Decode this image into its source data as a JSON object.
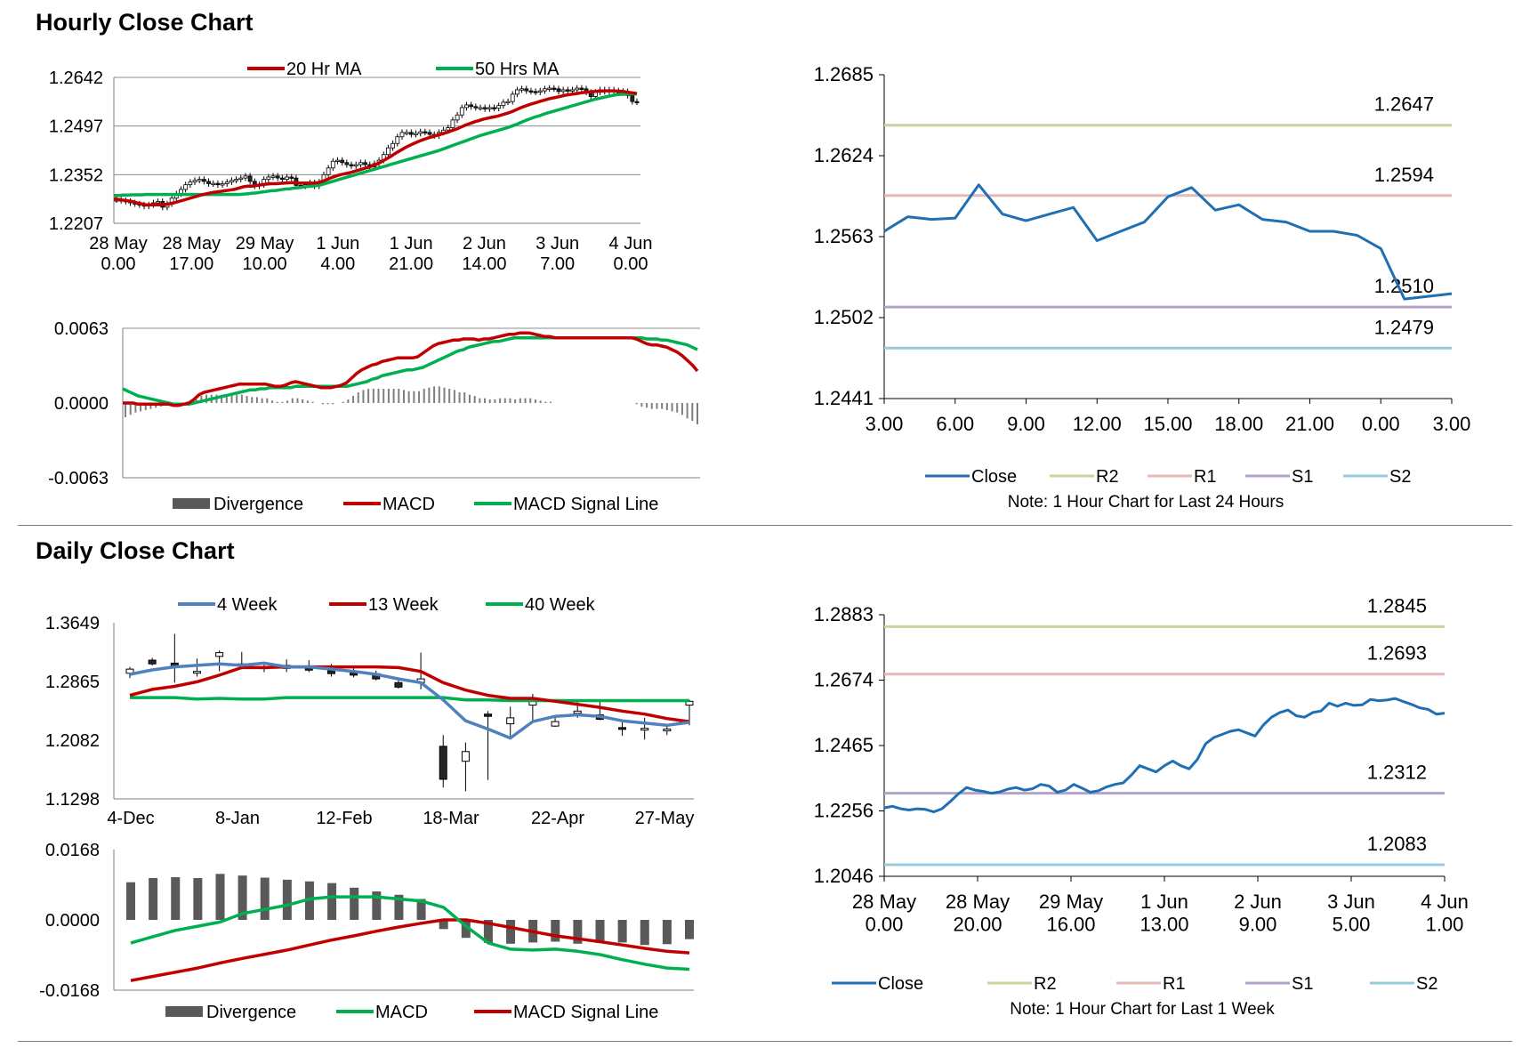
{
  "sections": {
    "hourly_title": "Hourly Close Chart",
    "daily_title": "Daily Close Chart"
  },
  "colors": {
    "ma20": "#c00000",
    "ma50": "#00b050",
    "close_blue": "#1f6fb2",
    "ma4w": "#4f81bd",
    "r2": "#c3d69b",
    "r1": "#e6b9b8",
    "s1": "#b3a2c7",
    "s2": "#93cddd",
    "divergence": "#595959",
    "candle_up_fill": "#ffffff",
    "candle_down_fill": "#262626"
  },
  "chart_data": [
    {
      "id": "hourly_price",
      "type": "candlestick",
      "legend": [
        "20 Hr MA",
        "50 Hrs MA"
      ],
      "ylim": [
        1.2207,
        1.2642
      ],
      "yticks": [
        "1.2642",
        "1.2497",
        "1.2352",
        "1.2207"
      ],
      "xticks": [
        "28 May\n0.00",
        "28 May\n17.00",
        "29 May\n10.00",
        "1 Jun\n4.00",
        "1 Jun\n21.00",
        "2 Jun\n14.00",
        "3 Jun\n7.00",
        "4 Jun\n0.00"
      ],
      "close": [
        1.2277,
        1.2275,
        1.2272,
        1.2268,
        1.2265,
        1.2262,
        1.2258,
        1.2262,
        1.2268,
        1.2272,
        1.2255,
        1.2265,
        1.2282,
        1.2295,
        1.2308,
        1.2322,
        1.233,
        1.2335,
        1.2338,
        1.2332,
        1.2325,
        1.2326,
        1.2322,
        1.2325,
        1.233,
        1.2335,
        1.2338,
        1.2342,
        1.2348,
        1.2332,
        1.2318,
        1.2322,
        1.2338,
        1.2345,
        1.2348,
        1.2342,
        1.2338,
        1.2345,
        1.2342,
        1.232,
        1.2318,
        1.2322,
        1.2328,
        1.2318,
        1.233,
        1.2352,
        1.2372,
        1.2392,
        1.2395,
        1.2388,
        1.2382,
        1.2378,
        1.2382,
        1.2388,
        1.2382,
        1.2375,
        1.2385,
        1.2395,
        1.2412,
        1.2432,
        1.2445,
        1.2465,
        1.2478,
        1.2478,
        1.2472,
        1.2475,
        1.248,
        1.2478,
        1.2472,
        1.2468,
        1.2478,
        1.2485,
        1.2492,
        1.2515,
        1.253,
        1.2552,
        1.256,
        1.2555,
        1.2552,
        1.2552,
        1.2548,
        1.2552,
        1.255,
        1.2558,
        1.2568,
        1.257,
        1.2592,
        1.2605,
        1.2608,
        1.2602,
        1.26,
        1.2598,
        1.2602,
        1.2608,
        1.261,
        1.2608,
        1.26,
        1.2605,
        1.2602,
        1.2605,
        1.261,
        1.2608,
        1.2598,
        1.2585,
        1.2598,
        1.2605,
        1.26,
        1.2605,
        1.2602,
        1.2596,
        1.26,
        1.2588,
        1.257,
        1.2568
      ],
      "ma20": [
        1.228,
        1.2278,
        1.2276,
        1.2274,
        1.2272,
        1.2268,
        1.2265,
        1.2262,
        1.2262,
        1.2262,
        1.2262,
        1.2263,
        1.2265,
        1.2268,
        1.2272,
        1.2276,
        1.228,
        1.2284,
        1.2288,
        1.2292,
        1.2295,
        1.2298,
        1.23,
        1.2302,
        1.2304,
        1.2306,
        1.2308,
        1.2312,
        1.2316,
        1.2318,
        1.2318,
        1.232,
        1.2322,
        1.2324,
        1.2325,
        1.2325,
        1.2326,
        1.2327,
        1.2328,
        1.2328,
        1.2327,
        1.2327,
        1.2327,
        1.2327,
        1.2328,
        1.2332,
        1.2337,
        1.2343,
        1.2348,
        1.2352,
        1.2355,
        1.2358,
        1.2362,
        1.2366,
        1.237,
        1.2374,
        1.2379,
        1.2385,
        1.2392,
        1.24,
        1.2408,
        1.2417,
        1.2425,
        1.2433,
        1.244,
        1.2446,
        1.2452,
        1.2457,
        1.2462,
        1.2466,
        1.247,
        1.2474,
        1.2478,
        1.2483,
        1.2488,
        1.2494,
        1.25,
        1.2505,
        1.251,
        1.2514,
        1.2518,
        1.2521,
        1.2524,
        1.2527,
        1.2531,
        1.2535,
        1.254,
        1.2546,
        1.2552,
        1.2557,
        1.2562,
        1.2566,
        1.257,
        1.2574,
        1.2578,
        1.2581,
        1.2584,
        1.2587,
        1.259,
        1.2592,
        1.2594,
        1.2596,
        1.2598,
        1.2599,
        1.26,
        1.2601,
        1.2602,
        1.2602,
        1.2602,
        1.2601,
        1.26,
        1.2598,
        1.2596,
        1.2594
      ],
      "ma50": [
        1.229,
        1.229,
        1.2291,
        1.2291,
        1.2292,
        1.2292,
        1.2292,
        1.2293,
        1.2293,
        1.2293,
        1.2293,
        1.2293,
        1.2293,
        1.2293,
        1.2293,
        1.2293,
        1.2293,
        1.2293,
        1.2293,
        1.2293,
        1.2293,
        1.2293,
        1.2293,
        1.2293,
        1.2293,
        1.2293,
        1.2293,
        1.2293,
        1.2294,
        1.2295,
        1.2297,
        1.2298,
        1.23,
        1.2302,
        1.2304,
        1.2305,
        1.2307,
        1.2309,
        1.231,
        1.2312,
        1.2313,
        1.2315,
        1.2317,
        1.2318,
        1.232,
        1.2323,
        1.2327,
        1.2331,
        1.2335,
        1.2339,
        1.2343,
        1.2347,
        1.2351,
        1.2355,
        1.2359,
        1.2363,
        1.2367,
        1.2371,
        1.2375,
        1.2379,
        1.2383,
        1.2387,
        1.2391,
        1.2395,
        1.2399,
        1.2403,
        1.2407,
        1.2411,
        1.2415,
        1.2419,
        1.2423,
        1.2428,
        1.2433,
        1.2438,
        1.2443,
        1.2448,
        1.2453,
        1.2458,
        1.2463,
        1.2468,
        1.2472,
        1.2476,
        1.248,
        1.2484,
        1.2488,
        1.2492,
        1.2497,
        1.2502,
        1.2508,
        1.2514,
        1.2519,
        1.2524,
        1.2528,
        1.2533,
        1.2537,
        1.2541,
        1.2545,
        1.2549,
        1.2553,
        1.2557,
        1.2561,
        1.2565,
        1.2569,
        1.2573,
        1.2577,
        1.258,
        1.2583,
        1.2586,
        1.2589,
        1.2591,
        1.2592,
        1.2593,
        1.2593,
        1.2593
      ]
    },
    {
      "id": "hourly_macd",
      "type": "bar+line",
      "legend": [
        "Divergence",
        "MACD",
        "MACD Signal Line"
      ],
      "ylim": [
        -0.0063,
        0.0063
      ],
      "yticks": [
        "0.0063",
        "0.0000",
        "-0.0063"
      ],
      "macd": [
        0.0,
        0.0,
        0.0,
        -0.0001,
        -0.0001,
        -0.0001,
        -0.0001,
        -0.0001,
        -0.0001,
        -0.0001,
        -0.0002,
        -0.0002,
        -0.0001,
        0.0,
        0.0003,
        0.0007,
        0.0009,
        0.001,
        0.0011,
        0.0012,
        0.0013,
        0.0014,
        0.0015,
        0.0016,
        0.0016,
        0.0016,
        0.0016,
        0.0016,
        0.0016,
        0.0015,
        0.0014,
        0.0014,
        0.0015,
        0.0017,
        0.0018,
        0.0017,
        0.0016,
        0.0015,
        0.0014,
        0.0013,
        0.0013,
        0.0013,
        0.0014,
        0.0015,
        0.0017,
        0.0021,
        0.0025,
        0.0028,
        0.003,
        0.0032,
        0.0033,
        0.0035,
        0.0036,
        0.0037,
        0.0038,
        0.0038,
        0.0038,
        0.0038,
        0.0039,
        0.0042,
        0.0045,
        0.0048,
        0.005,
        0.0051,
        0.0052,
        0.0053,
        0.0053,
        0.0054,
        0.0054,
        0.0054,
        0.0053,
        0.0054,
        0.0054,
        0.0055,
        0.0056,
        0.0057,
        0.0058,
        0.0058,
        0.0059,
        0.0059,
        0.0059,
        0.0058,
        0.0057,
        0.0056,
        0.0056,
        0.0055,
        0.0055,
        0.0055,
        0.0055,
        0.0055,
        0.0055,
        0.0055,
        0.0055,
        0.0055,
        0.0055,
        0.0055,
        0.0055,
        0.0055,
        0.0055,
        0.0055,
        0.0055,
        0.0054,
        0.0052,
        0.005,
        0.0049,
        0.0049,
        0.0048,
        0.0047,
        0.0045,
        0.0043,
        0.004,
        0.0036,
        0.0032,
        0.0027
      ],
      "signal": [
        0.0012,
        0.001,
        0.0008,
        0.0006,
        0.0005,
        0.0004,
        0.0003,
        0.0002,
        0.0001,
        0.0,
        -0.0001,
        -0.0001,
        -0.0001,
        -0.0001,
        0.0,
        0.0001,
        0.0002,
        0.0003,
        0.0004,
        0.0005,
        0.0006,
        0.0007,
        0.0008,
        0.0009,
        0.001,
        0.0011,
        0.0011,
        0.0012,
        0.0012,
        0.0013,
        0.0013,
        0.0013,
        0.0013,
        0.0013,
        0.0014,
        0.0014,
        0.0014,
        0.0014,
        0.0014,
        0.0014,
        0.0014,
        0.0014,
        0.0014,
        0.0014,
        0.0014,
        0.0015,
        0.0016,
        0.0017,
        0.0018,
        0.002,
        0.0021,
        0.0023,
        0.0024,
        0.0025,
        0.0026,
        0.0027,
        0.0028,
        0.0028,
        0.0029,
        0.003,
        0.0032,
        0.0034,
        0.0036,
        0.0038,
        0.004,
        0.0042,
        0.0044,
        0.0045,
        0.0047,
        0.0048,
        0.0049,
        0.005,
        0.0051,
        0.0052,
        0.0052,
        0.0053,
        0.0054,
        0.0055,
        0.0055,
        0.0055,
        0.0055,
        0.0055,
        0.0055,
        0.0055,
        0.0055,
        0.0055,
        0.0055,
        0.0055,
        0.0055,
        0.0055,
        0.0055,
        0.0055,
        0.0055,
        0.0055,
        0.0055,
        0.0055,
        0.0055,
        0.0055,
        0.0055,
        0.0055,
        0.0055,
        0.0055,
        0.0055,
        0.0054,
        0.0054,
        0.0054,
        0.0053,
        0.0053,
        0.0052,
        0.0051,
        0.005,
        0.0049,
        0.0047,
        0.0045
      ]
    },
    {
      "id": "hourly_levels",
      "type": "line",
      "legend": [
        "Close",
        "R2",
        "R1",
        "S1",
        "S2"
      ],
      "note": "Note: 1 Hour Chart for Last 24 Hours",
      "ylim": [
        1.2441,
        1.2685
      ],
      "yticks": [
        "1.2685",
        "1.2624",
        "1.2563",
        "1.2502",
        "1.2441"
      ],
      "xticks": [
        "3.00",
        "6.00",
        "9.00",
        "12.00",
        "15.00",
        "18.00",
        "21.00",
        "0.00",
        "3.00"
      ],
      "close": [
        1.2567,
        1.2578,
        1.2576,
        1.2577,
        1.2602,
        1.258,
        1.2575,
        1.258,
        1.2585,
        1.256,
        1.2567,
        1.2574,
        1.2593,
        1.26,
        1.2583,
        1.2587,
        1.2576,
        1.2574,
        1.2567,
        1.2567,
        1.2564,
        1.2554,
        1.2516,
        1.2518,
        1.252
      ],
      "levels": {
        "R2": "1.2647",
        "R1": "1.2594",
        "S1": "1.2510",
        "S2": "1.2479"
      }
    },
    {
      "id": "daily_price",
      "type": "candlestick",
      "legend": [
        "4 Week",
        "13 Week",
        "40 Week"
      ],
      "ylim": [
        1.1298,
        1.3649
      ],
      "yticks": [
        "1.3649",
        "1.2865",
        "1.2082",
        "1.1298"
      ],
      "xticks": [
        "4-Dec",
        "8-Jan",
        "12-Feb",
        "18-Mar",
        "22-Apr",
        "27-May"
      ],
      "candles": [
        [
          1.2975,
          1.303,
          1.291,
          1.306
        ],
        [
          1.315,
          1.31,
          1.308,
          1.318
        ],
        [
          1.311,
          1.307,
          1.285,
          1.35
        ],
        [
          1.299,
          1.3,
          1.293,
          1.317
        ],
        [
          1.32,
          1.325,
          1.3,
          1.328
        ],
        [
          1.31,
          1.308,
          1.303,
          1.326
        ],
        [
          1.305,
          1.306,
          1.299,
          1.31
        ],
        [
          1.304,
          1.308,
          1.299,
          1.316
        ],
        [
          1.304,
          1.302,
          1.299,
          1.315
        ],
        [
          1.301,
          1.297,
          1.293,
          1.31
        ],
        [
          1.298,
          1.295,
          1.292,
          1.305
        ],
        [
          1.297,
          1.29,
          1.288,
          1.301
        ],
        [
          1.285,
          1.279,
          1.277,
          1.289
        ],
        [
          1.285,
          1.29,
          1.276,
          1.325
        ],
        [
          1.2,
          1.156,
          1.145,
          1.215
        ],
        [
          1.18,
          1.193,
          1.14,
          1.205
        ],
        [
          1.243,
          1.24,
          1.155,
          1.247
        ],
        [
          1.23,
          1.238,
          1.21,
          1.253
        ],
        [
          1.255,
          1.264,
          1.232,
          1.27
        ],
        [
          1.227,
          1.233,
          1.226,
          1.24
        ],
        [
          1.244,
          1.247,
          1.238,
          1.262
        ],
        [
          1.242,
          1.236,
          1.235,
          1.262
        ],
        [
          1.225,
          1.223,
          1.214,
          1.235
        ],
        [
          1.223,
          1.224,
          1.209,
          1.238
        ],
        [
          1.223,
          1.223,
          1.215,
          1.226
        ],
        [
          1.255,
          1.26,
          1.228,
          1.262
        ]
      ],
      "ma4w": [
        1.296,
        1.302,
        1.306,
        1.308,
        1.31,
        1.308,
        1.311,
        1.306,
        1.306,
        1.303,
        1.3,
        1.296,
        1.29,
        1.285,
        1.262,
        1.234,
        1.223,
        1.211,
        1.233,
        1.24,
        1.242,
        1.24,
        1.234,
        1.231,
        1.228,
        1.232
      ],
      "ma13w": [
        1.268,
        1.276,
        1.28,
        1.286,
        1.295,
        1.305,
        1.305,
        1.306,
        1.306,
        1.306,
        1.306,
        1.306,
        1.305,
        1.3,
        1.285,
        1.275,
        1.268,
        1.264,
        1.264,
        1.26,
        1.256,
        1.252,
        1.247,
        1.243,
        1.237,
        1.233
      ],
      "ma40w": [
        1.265,
        1.265,
        1.265,
        1.263,
        1.264,
        1.263,
        1.263,
        1.265,
        1.265,
        1.265,
        1.265,
        1.265,
        1.265,
        1.265,
        1.265,
        1.262,
        1.262,
        1.261,
        1.261,
        1.261,
        1.261,
        1.261,
        1.261,
        1.261,
        1.261,
        1.261
      ]
    },
    {
      "id": "daily_macd",
      "type": "bar+line",
      "legend": [
        "Divergence",
        "MACD",
        "MACD Signal Line"
      ],
      "ylim": [
        -0.0168,
        0.0168
      ],
      "yticks": [
        "0.0168",
        "0.0000",
        "-0.0168"
      ],
      "divergence": [
        0.009,
        0.01,
        0.0102,
        0.01,
        0.011,
        0.0106,
        0.0101,
        0.0096,
        0.0092,
        0.0088,
        0.0077,
        0.0068,
        0.006,
        0.005,
        -0.0022,
        -0.0043,
        -0.0055,
        -0.0057,
        -0.0054,
        -0.0052,
        -0.0057,
        -0.0055,
        -0.0054,
        -0.006,
        -0.0058,
        -0.0046
      ],
      "macd": [
        -0.0055,
        -0.004,
        -0.0025,
        -0.0015,
        -0.0005,
        0.0015,
        0.0025,
        0.0035,
        0.005,
        0.0055,
        0.0055,
        0.0055,
        0.005,
        0.0045,
        0.003,
        -0.0015,
        -0.0055,
        -0.007,
        -0.0072,
        -0.007,
        -0.0075,
        -0.0083,
        -0.0095,
        -0.0106,
        -0.0115,
        -0.0118
      ],
      "signal": [
        -0.0145,
        -0.0135,
        -0.0125,
        -0.0115,
        -0.0103,
        -0.0092,
        -0.0082,
        -0.0072,
        -0.006,
        -0.0048,
        -0.0038,
        -0.0027,
        -0.0017,
        -0.0008,
        0.0,
        0.0,
        -0.0008,
        -0.0018,
        -0.0028,
        -0.0038,
        -0.0045,
        -0.0052,
        -0.006,
        -0.0068,
        -0.0075,
        -0.0079
      ]
    },
    {
      "id": "daily_levels",
      "type": "line",
      "legend": [
        "Close",
        "R2",
        "R1",
        "S1",
        "S2"
      ],
      "note": "Note: 1 Hour Chart for Last 1 Week",
      "ylim": [
        1.2046,
        1.2883
      ],
      "yticks": [
        "1.2883",
        "1.2674",
        "1.2465",
        "1.2256",
        "1.2046"
      ],
      "xticks": [
        "28 May\n0.00",
        "28 May\n20.00",
        "29 May\n16.00",
        "1 Jun\n13.00",
        "2 Jun\n9.00",
        "3 Jun\n5.00",
        "4 Jun\n1.00"
      ],
      "close": [
        1.2265,
        1.227,
        1.2262,
        1.2258,
        1.2262,
        1.226,
        1.2252,
        1.2262,
        1.2285,
        1.231,
        1.233,
        1.2322,
        1.2318,
        1.2312,
        1.2316,
        1.2325,
        1.233,
        1.2322,
        1.2326,
        1.234,
        1.2335,
        1.2315,
        1.2322,
        1.234,
        1.2328,
        1.2315,
        1.232,
        1.2332,
        1.234,
        1.2345,
        1.237,
        1.24,
        1.239,
        1.238,
        1.24,
        1.2415,
        1.24,
        1.239,
        1.242,
        1.247,
        1.249,
        1.25,
        1.251,
        1.2515,
        1.2505,
        1.2495,
        1.253,
        1.2555,
        1.257,
        1.2578,
        1.256,
        1.2555,
        1.257,
        1.2575,
        1.26,
        1.259,
        1.26,
        1.2593,
        1.2595,
        1.2612,
        1.2608,
        1.261,
        1.2615,
        1.2605,
        1.2596,
        1.2585,
        1.258,
        1.2565,
        1.2568
      ],
      "levels": {
        "R2": "1.2845",
        "R1": "1.2693",
        "S1": "1.2312",
        "S2": "1.2083"
      }
    }
  ]
}
